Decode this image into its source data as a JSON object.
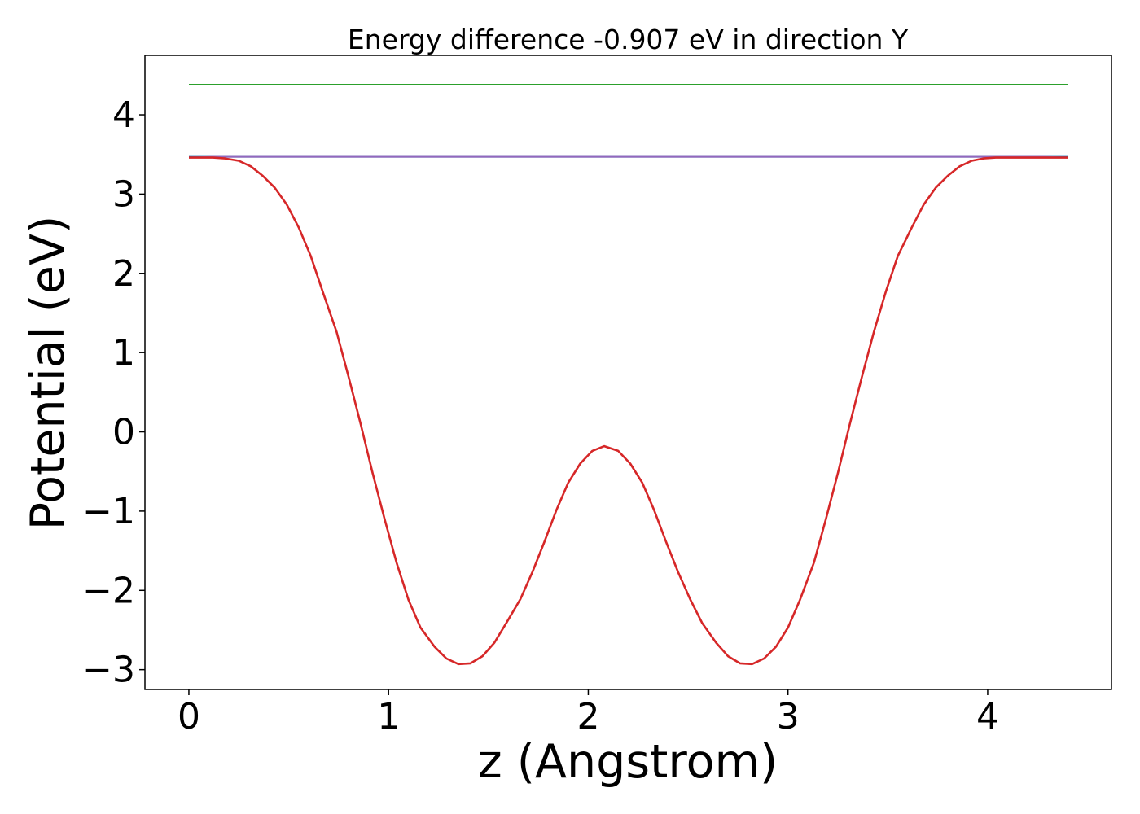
{
  "chart_data": {
    "type": "line",
    "title": "Energy difference -0.907 eV in direction Y",
    "xlabel": "z (Angstrom)",
    "ylabel": "Potential (eV)",
    "xlim": [
      -0.22,
      4.62
    ],
    "ylim": [
      -3.25,
      4.75
    ],
    "xticks": [
      0,
      1,
      2,
      3,
      4
    ],
    "yticks": [
      -3,
      -2,
      -1,
      0,
      1,
      2,
      3,
      4
    ],
    "xtick_labels": [
      "0",
      "1",
      "2",
      "3",
      "4"
    ],
    "ytick_labels": [
      "−3",
      "−2",
      "−1",
      "0",
      "1",
      "2",
      "3",
      "4"
    ],
    "grid": false,
    "legend": false,
    "series": [
      {
        "color": "#2ca02c",
        "x": [
          0,
          4.4
        ],
        "values": [
          4.38,
          4.38
        ]
      },
      {
        "color": "#1f77b4",
        "x": [
          0,
          4.4
        ],
        "values": [
          3.47,
          3.47
        ]
      },
      {
        "color": "#9467bd",
        "x": [
          0,
          0.12,
          4.28,
          4.4
        ],
        "values": [
          3.46,
          3.47,
          3.47,
          3.46
        ]
      },
      {
        "color": "#d62728",
        "x": [
          0,
          0.06,
          0.12,
          0.18,
          0.25,
          0.31,
          0.37,
          0.43,
          0.49,
          0.55,
          0.61,
          0.67,
          0.74,
          0.8,
          0.86,
          0.92,
          0.98,
          1.04,
          1.1,
          1.16,
          1.23,
          1.29,
          1.35,
          1.41,
          1.47,
          1.53,
          1.59,
          1.66,
          1.72,
          1.78,
          1.84,
          1.9,
          1.96,
          2.02,
          2.08,
          2.15,
          2.21,
          2.27,
          2.33,
          2.39,
          2.45,
          2.51,
          2.57,
          2.64,
          2.7,
          2.76,
          2.82,
          2.88,
          2.94,
          3.0,
          3.06,
          3.13,
          3.19,
          3.25,
          3.31,
          3.37,
          3.43,
          3.49,
          3.55,
          3.62,
          3.68,
          3.74,
          3.8,
          3.86,
          3.92,
          3.98,
          4.04,
          4.11,
          4.17,
          4.23,
          4.29,
          4.35,
          4.4
        ],
        "values": [
          3.46,
          3.46,
          3.46,
          3.45,
          3.42,
          3.35,
          3.23,
          3.08,
          2.87,
          2.58,
          2.22,
          1.77,
          1.26,
          0.69,
          0.1,
          -0.52,
          -1.1,
          -1.65,
          -2.12,
          -2.47,
          -2.71,
          -2.86,
          -2.93,
          -2.92,
          -2.83,
          -2.66,
          -2.41,
          -2.11,
          -1.77,
          -1.39,
          -0.99,
          -0.64,
          -0.4,
          -0.24,
          -0.18,
          -0.24,
          -0.4,
          -0.64,
          -0.99,
          -1.39,
          -1.77,
          -2.11,
          -2.41,
          -2.66,
          -2.83,
          -2.92,
          -2.93,
          -2.86,
          -2.71,
          -2.47,
          -2.12,
          -1.65,
          -1.1,
          -0.52,
          0.1,
          0.69,
          1.26,
          1.77,
          2.22,
          2.58,
          2.87,
          3.08,
          3.23,
          3.35,
          3.42,
          3.45,
          3.46,
          3.46,
          3.46,
          3.46,
          3.46,
          3.46,
          3.46
        ]
      }
    ]
  }
}
